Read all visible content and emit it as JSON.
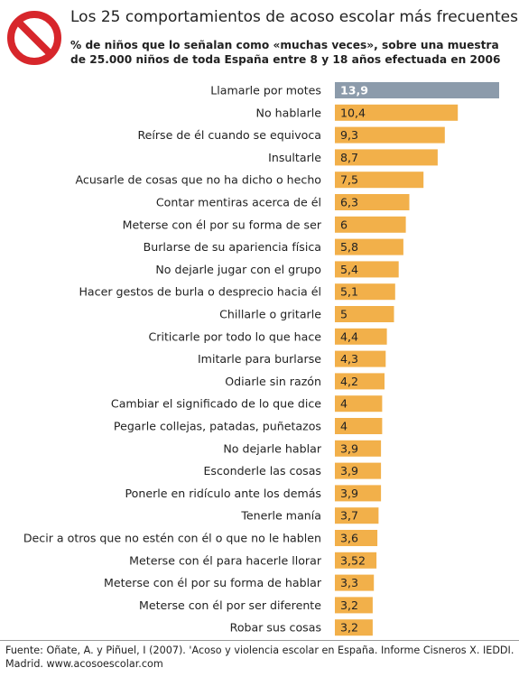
{
  "header": {
    "title": "Los 25 comportamientos de acoso escolar más frecuentes",
    "subtitle": "% de niños que lo señalan como «muchas veces», sobre una muestra de 25.000 niños de toda España entre 8 y 18 años efectuada en 2006",
    "icon": "prohibition-sign-icon"
  },
  "colors": {
    "bar": "#f2b04a",
    "highlight_bar": "#8c9bab",
    "icon": "#d7262b"
  },
  "chart_data": {
    "type": "bar",
    "orientation": "horizontal",
    "title": "Los 25 comportamientos de acoso escolar más frecuentes",
    "subtitle": "% de niños que lo señalan como «muchas veces», sobre una muestra de 25.000 niños de toda España entre 8 y 18 años efectuada en 2006",
    "xlim": [
      0,
      13.9
    ],
    "highlight_index": 0,
    "categories": [
      "Llamarle por motes",
      "No hablarle",
      "Reírse de él cuando se equivoca",
      "Insultarle",
      "Acusarle de cosas que no ha dicho o hecho",
      "Contar mentiras acerca de él",
      "Meterse con él por su forma de ser",
      "Burlarse de su apariencia física",
      "No dejarle jugar con el grupo",
      "Hacer gestos de burla o desprecio hacia él",
      "Chillarle o gritarle",
      "Criticarle por todo lo que hace",
      "Imitarle para burlarse",
      "Odiarle sin razón",
      "Cambiar el significado de lo que dice",
      "Pegarle collejas, patadas, puñetazos",
      "No dejarle hablar",
      "Esconderle las cosas",
      "Ponerle en ridículo ante los demás",
      "Tenerle manía",
      "Decir a otros que no estén con él o que no le hablen",
      "Meterse con él para hacerle llorar",
      "Meterse con él por su forma de hablar",
      "Meterse con él por ser diferente",
      "Robar sus cosas"
    ],
    "values": [
      13.9,
      10.4,
      9.3,
      8.7,
      7.5,
      6.3,
      6,
      5.8,
      5.4,
      5.1,
      5,
      4.4,
      4.3,
      4.2,
      4,
      4,
      3.9,
      3.9,
      3.9,
      3.7,
      3.6,
      3.52,
      3.3,
      3.2,
      3.2
    ],
    "value_labels": [
      "13,9",
      "10,4",
      "9,3",
      "8,7",
      "7,5",
      "6,3",
      "6",
      "5,8",
      "5,4",
      "5,1",
      "5",
      "4,4",
      "4,3",
      "4,2",
      "4",
      "4",
      "3,9",
      "3,9",
      "3,9",
      "3,7",
      "3,6",
      "3,52",
      "3,3",
      "3,2",
      "3,2"
    ]
  },
  "footer": {
    "source": "Fuente: Oñate, A. y Piñuel, I (2007). 'Acoso y violencia escolar en España. Informe Cisneros X. IEDDI. Madrid. www.acosoescolar.com"
  }
}
